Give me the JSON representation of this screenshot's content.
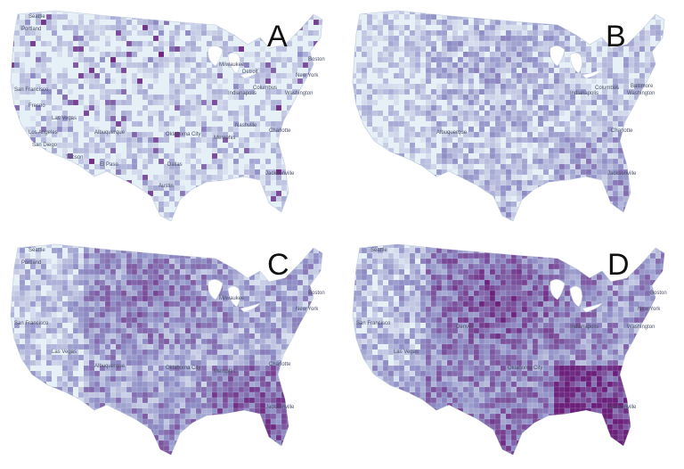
{
  "panels": [
    {
      "label": "A",
      "intensity": 0.12,
      "cities": [
        "Seattle",
        "Portland",
        "San Francisco",
        "Fresno",
        "Las Vegas",
        "Los Angeles",
        "San Diego",
        "Tucson",
        "Albuquerque",
        "El Paso",
        "Oklahoma City",
        "Dallas",
        "Austin",
        "Memphis",
        "Nashville",
        "Charlotte",
        "Jacksonville",
        "Indianapolis",
        "Milwaukee",
        "Columbus",
        "Detroit",
        "Boston",
        "New York",
        "Washington"
      ]
    },
    {
      "label": "B",
      "intensity": 0.35,
      "cities": [
        "Albuquerque",
        "Charlotte",
        "Jacksonville",
        "Washington",
        "Baltimore",
        "Indianapolis",
        "Columbus"
      ]
    },
    {
      "label": "C",
      "intensity": 0.62,
      "cities": [
        "Seattle",
        "Portland",
        "San Francisco",
        "Las Vegas",
        "Albuquerque",
        "Oklahoma City",
        "Memphis",
        "Charlotte",
        "Jacksonville",
        "Boston",
        "New York",
        "Milwaukee"
      ]
    },
    {
      "label": "D",
      "intensity": 0.82,
      "cities": [
        "Seattle",
        "San Francisco",
        "Las Vegas",
        "Denver",
        "Oklahoma City",
        "Indianapolis",
        "Washington",
        "Jacksonville",
        "Boston",
        "New York"
      ]
    }
  ],
  "colors": {
    "low": "#e6f0f7",
    "mid": "#8f8fc6",
    "high": "#6b1f7a",
    "water": "#ffffff"
  }
}
